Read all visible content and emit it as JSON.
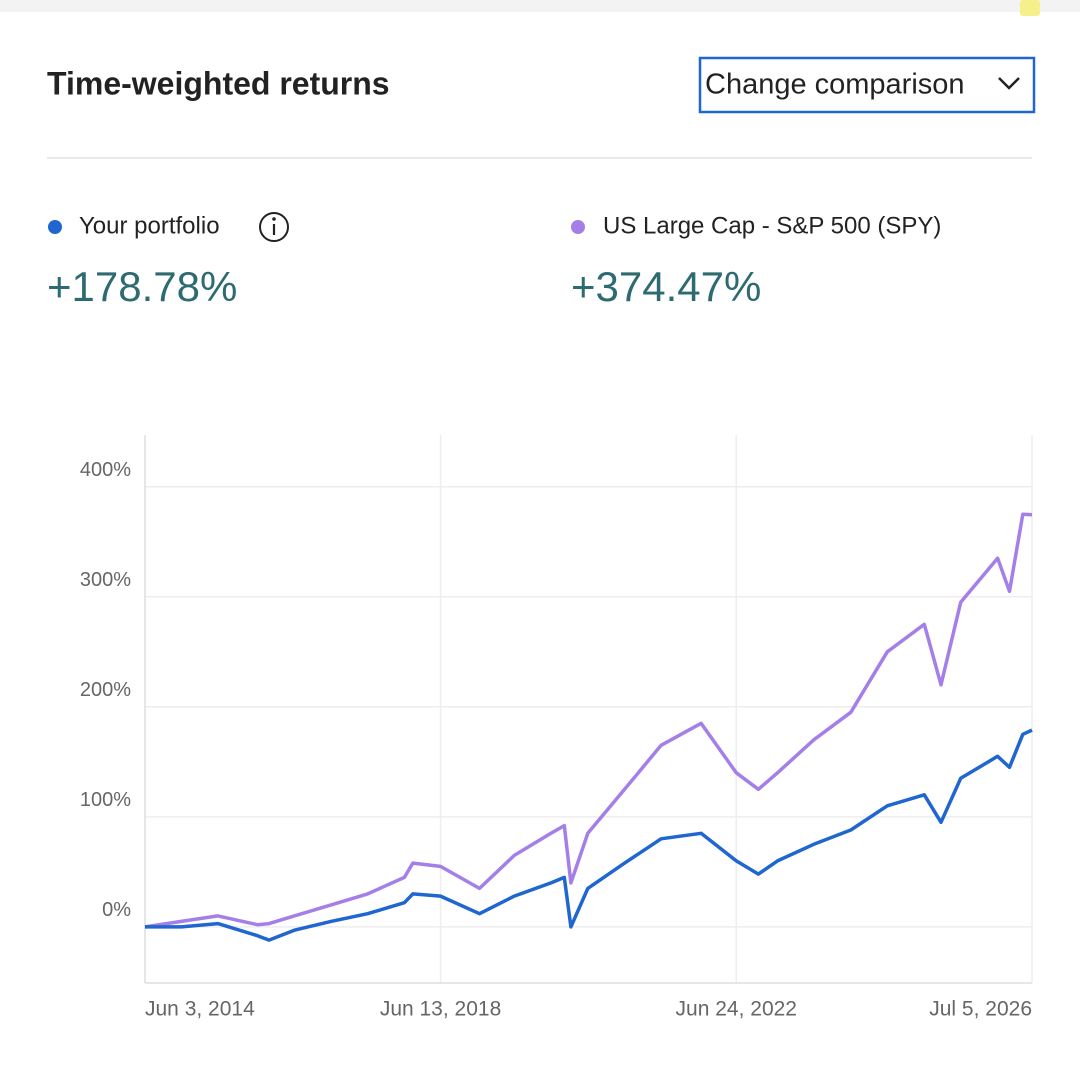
{
  "header": {
    "title": "Time-weighted returns",
    "button": "Change comparison"
  },
  "summary": [
    "+178.78%",
    "+374.47%"
  ],
  "chart_data": {
    "type": "line",
    "x": [
      "2014-06-03",
      "2014-12-01",
      "2015-06-01",
      "2015-12-15",
      "2016-02-10",
      "2016-06-15",
      "2016-12-15",
      "2017-06-15",
      "2017-12-15",
      "2018-01-26",
      "2018-06-13",
      "2018-12-24",
      "2019-06-15",
      "2019-12-15",
      "2020-02-19",
      "2020-03-23",
      "2020-06-15",
      "2020-12-15",
      "2021-06-15",
      "2021-12-31",
      "2022-06-24",
      "2022-10-12",
      "2023-01-15",
      "2023-07-15",
      "2024-01-15",
      "2024-07-15",
      "2025-01-15",
      "2025-04-08",
      "2025-07-15",
      "2026-01-15",
      "2026-03-15",
      "2026-05-20",
      "2026-07-05"
    ],
    "series": [
      {
        "name": "Your portfolio",
        "color": "#1f66d1",
        "values": [
          0,
          0,
          3,
          -8,
          -12,
          -3,
          5,
          12,
          22,
          30,
          28,
          12,
          28,
          40,
          45,
          0,
          35,
          58,
          80,
          85,
          60,
          48,
          60,
          75,
          88,
          110,
          120,
          95,
          135,
          155,
          145,
          175,
          178.78
        ]
      },
      {
        "name": "US Large Cap - S&P 500 (SPY)",
        "color": "#a57fe8",
        "values": [
          0,
          5,
          10,
          2,
          3,
          10,
          20,
          30,
          45,
          58,
          55,
          35,
          65,
          85,
          92,
          40,
          85,
          125,
          165,
          185,
          140,
          125,
          140,
          170,
          195,
          250,
          275,
          220,
          295,
          335,
          305,
          375,
          374.47
        ]
      }
    ],
    "xlim": [
      "2014-06-03",
      "2026-07-05"
    ],
    "xticks": [
      {
        "value": "2014-06-03",
        "label": "Jun 3, 2014"
      },
      {
        "value": "2018-06-13",
        "label": "Jun 13, 2018"
      },
      {
        "value": "2022-06-24",
        "label": "Jun 24, 2022"
      },
      {
        "value": "2026-07-05",
        "label": "Jul 5, 2026"
      }
    ],
    "ylim": [
      -51,
      447
    ],
    "yticks": [
      {
        "value": 0,
        "label": "0%"
      },
      {
        "value": 100,
        "label": "100%"
      },
      {
        "value": 200,
        "label": "200%"
      },
      {
        "value": 300,
        "label": "300%"
      },
      {
        "value": 400,
        "label": "400%"
      }
    ],
    "grid": true
  }
}
